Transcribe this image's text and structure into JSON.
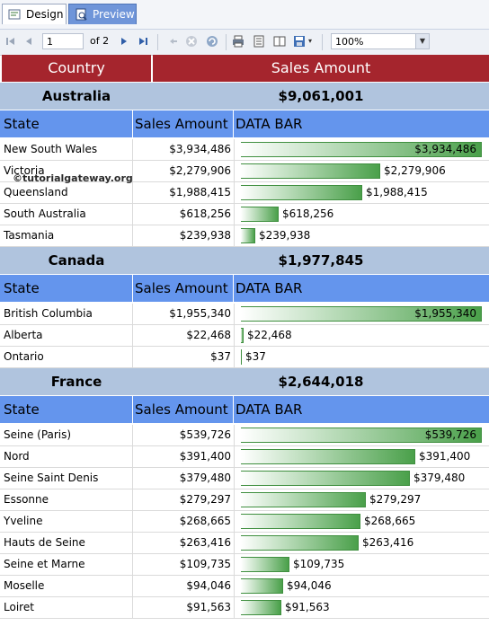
{
  "tabs": {
    "design": "Design",
    "preview": "Preview"
  },
  "toolbar": {
    "page_current": "1",
    "page_of": "of 2",
    "zoom": "100%"
  },
  "report": {
    "header_country": "Country",
    "header_sales": "Sales Amount",
    "col_state": "State",
    "col_sales": "Sales Amount",
    "col_bar": "DATA BAR",
    "bar_color": "#4aa04a",
    "header_color": "#a5252d",
    "groups": [
      {
        "country": "Australia",
        "total": "$9,061,001",
        "rows": [
          {
            "state": "New South Wales",
            "amount": "$3,934,486",
            "value": 3934486
          },
          {
            "state": "Victoria",
            "amount": "$2,279,906",
            "value": 2279906
          },
          {
            "state": "Queensland",
            "amount": "$1,988,415",
            "value": 1988415
          },
          {
            "state": "South Australia",
            "amount": "$618,256",
            "value": 618256
          },
          {
            "state": "Tasmania",
            "amount": "$239,938",
            "value": 239938
          }
        ]
      },
      {
        "country": "Canada",
        "total": "$1,977,845",
        "rows": [
          {
            "state": "British Columbia",
            "amount": "$1,955,340",
            "value": 1955340
          },
          {
            "state": "Alberta",
            "amount": "$22,468",
            "value": 22468
          },
          {
            "state": "Ontario",
            "amount": "$37",
            "value": 37
          }
        ]
      },
      {
        "country": "France",
        "total": "$2,644,018",
        "rows": [
          {
            "state": "Seine (Paris)",
            "amount": "$539,726",
            "value": 539726
          },
          {
            "state": "Nord",
            "amount": "$391,400",
            "value": 391400
          },
          {
            "state": "Seine Saint Denis",
            "amount": "$379,480",
            "value": 379480
          },
          {
            "state": "Essonne",
            "amount": "$279,297",
            "value": 279297
          },
          {
            "state": "Yveline",
            "amount": "$268,665",
            "value": 268665
          },
          {
            "state": "Hauts de Seine",
            "amount": "$263,416",
            "value": 263416
          },
          {
            "state": "Seine et Marne",
            "amount": "$109,735",
            "value": 109735
          },
          {
            "state": "Moselle",
            "amount": "$94,046",
            "value": 94046
          },
          {
            "state": "Loiret",
            "amount": "$91,563",
            "value": 91563
          }
        ]
      }
    ]
  },
  "watermark": "©tutorialgateway.org"
}
